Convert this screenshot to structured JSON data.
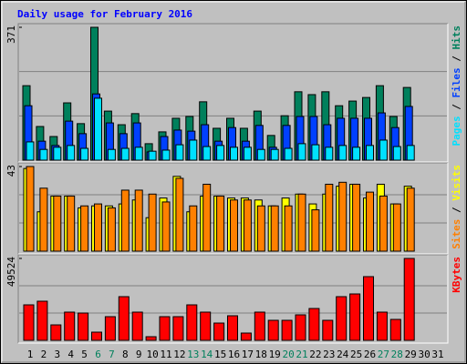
{
  "chart_data": [
    {
      "type": "bar",
      "title": "Daily usage for February 2016",
      "title_color": "#0000ff",
      "ylim": [
        0,
        371
      ],
      "yticks": [
        371
      ],
      "grid": true,
      "legend_separator": "/",
      "series": [
        {
          "name": "Hits",
          "color": "#00805c",
          "values": [
            208,
            94,
            66,
            160,
            102,
            371,
            137,
            99,
            130,
            46,
            79,
            117,
            122,
            163,
            89,
            117,
            89,
            137,
            69,
            124,
            191,
            183,
            191,
            152,
            165,
            175,
            208,
            122,
            203,
            null,
            null
          ]
        },
        {
          "name": "Files",
          "color": "#0040ff",
          "values": [
            152,
            53,
            41,
            109,
            74,
            185,
            104,
            74,
            104,
            23,
            66,
            84,
            81,
            99,
            53,
            91,
            53,
            97,
            36,
            97,
            122,
            122,
            99,
            117,
            117,
            117,
            132,
            91,
            150,
            null,
            null
          ]
        },
        {
          "name": "Pages",
          "color": "#00e0ff",
          "values": [
            51,
            30,
            36,
            41,
            33,
            173,
            30,
            33,
            36,
            25,
            28,
            43,
            56,
            38,
            41,
            36,
            36,
            30,
            30,
            33,
            46,
            43,
            36,
            41,
            36,
            41,
            56,
            38,
            41,
            null,
            null
          ]
        }
      ]
    },
    {
      "type": "bar",
      "ylim": [
        0,
        43
      ],
      "yticks": [
        43
      ],
      "grid": true,
      "legend_separator": "/",
      "series": [
        {
          "name": "Visits",
          "color": "#ffff00",
          "values": [
            42,
            20,
            28,
            28,
            22,
            23,
            23,
            24,
            26,
            17,
            27,
            38,
            20,
            28,
            28,
            27,
            27,
            26,
            23,
            27,
            29,
            24,
            29,
            33,
            34,
            27,
            34,
            24,
            33,
            null,
            null
          ]
        },
        {
          "name": "Sites",
          "color": "#ff8000",
          "values": [
            43,
            32,
            28,
            28,
            23,
            24,
            22,
            31,
            31,
            29,
            25,
            37,
            23,
            34,
            28,
            26,
            26,
            23,
            23,
            23,
            29,
            21,
            34,
            35,
            34,
            30,
            28,
            24,
            32,
            null,
            null
          ]
        }
      ]
    },
    {
      "type": "bar",
      "ylim": [
        0,
        49524
      ],
      "yticks": [
        49524
      ],
      "grid": true,
      "categories": [
        "1",
        "2",
        "3",
        "4",
        "5",
        "6",
        "7",
        "8",
        "9",
        "10",
        "11",
        "12",
        "13",
        "14",
        "15",
        "16",
        "17",
        "18",
        "19",
        "20",
        "21",
        "22",
        "23",
        "24",
        "25",
        "26",
        "27",
        "28",
        "29",
        "30",
        "31"
      ],
      "label_colors": [
        "#000000",
        "#000000",
        "#000000",
        "#000000",
        "#000000",
        "#00805c",
        "#00805c",
        "#000000",
        "#000000",
        "#000000",
        "#000000",
        "#000000",
        "#00805c",
        "#00805c",
        "#000000",
        "#000000",
        "#000000",
        "#000000",
        "#000000",
        "#00805c",
        "#00805c",
        "#000000",
        "#000000",
        "#000000",
        "#000000",
        "#000000",
        "#00805c",
        "#00805c",
        "#000000",
        "#000000",
        "#000000"
      ],
      "series": [
        {
          "name": "KBytes",
          "color": "#ff0000",
          "values": [
            21460,
            23660,
            9350,
            17060,
            16510,
            4950,
            14310,
            26410,
            17060,
            2200,
            14310,
            14310,
            21460,
            17060,
            10450,
            14860,
            4400,
            17060,
            12110,
            12110,
            15410,
            19260,
            12110,
            26410,
            28060,
            38520,
            17060,
            12660,
            49524,
            null,
            null
          ]
        }
      ]
    }
  ]
}
